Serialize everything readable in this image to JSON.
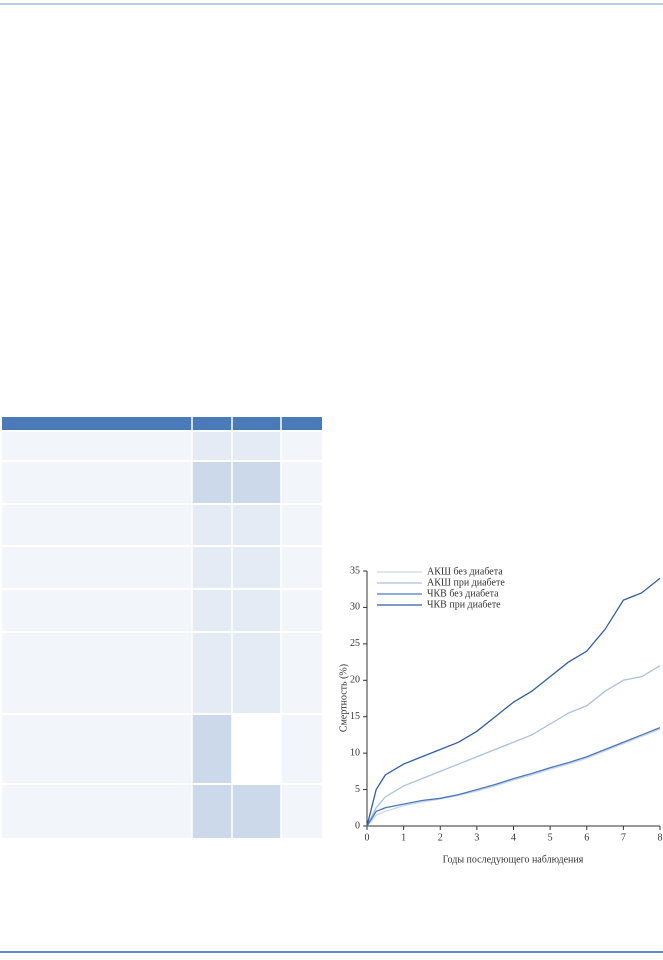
{
  "chart_data": {
    "type": "line",
    "y_label": "Смертность (%)",
    "x_label": "Годы последующего наблюдения",
    "x": [
      0,
      0.25,
      0.5,
      1,
      1.5,
      2,
      2.5,
      3,
      3.5,
      4,
      4.5,
      5,
      5.5,
      6,
      6.5,
      7,
      7.5,
      8
    ],
    "series": [
      {
        "name": "АКШ без диабета",
        "color": "#c9d6ea",
        "values": [
          0,
          1.5,
          2,
          2.8,
          3.3,
          3.7,
          4.2,
          4.8,
          5.5,
          6.3,
          7,
          7.8,
          8.5,
          9.3,
          10.3,
          11.3,
          12.3,
          13.3
        ]
      },
      {
        "name": "АКШ при диабете",
        "color": "#a9c1e2",
        "values": [
          0,
          2.5,
          4,
          5.5,
          6.5,
          7.5,
          8.5,
          9.5,
          10.5,
          11.5,
          12.5,
          14,
          15.5,
          16.5,
          18.5,
          20,
          20.5,
          22
        ]
      },
      {
        "name": "ЧКВ без диабета",
        "color": "#4a78bc",
        "values": [
          0,
          2,
          2.5,
          3,
          3.5,
          3.8,
          4.3,
          5,
          5.7,
          6.5,
          7.2,
          8,
          8.7,
          9.5,
          10.5,
          11.5,
          12.5,
          13.5
        ]
      },
      {
        "name": "ЧКВ при диабете",
        "color": "#2d5ea8",
        "values": [
          0,
          5,
          7,
          8.5,
          9.5,
          10.5,
          11.5,
          13,
          15,
          17,
          18.5,
          20.5,
          22.5,
          24,
          27,
          31,
          32,
          34
        ]
      }
    ],
    "xlim": [
      0,
      8
    ],
    "xticks": [
      0,
      1,
      2,
      3,
      4,
      5,
      6,
      7,
      8
    ],
    "ylim": [
      0,
      35
    ],
    "yticks": [
      0,
      5,
      10,
      15,
      20,
      25,
      30,
      35
    ],
    "legend": "top-left"
  }
}
